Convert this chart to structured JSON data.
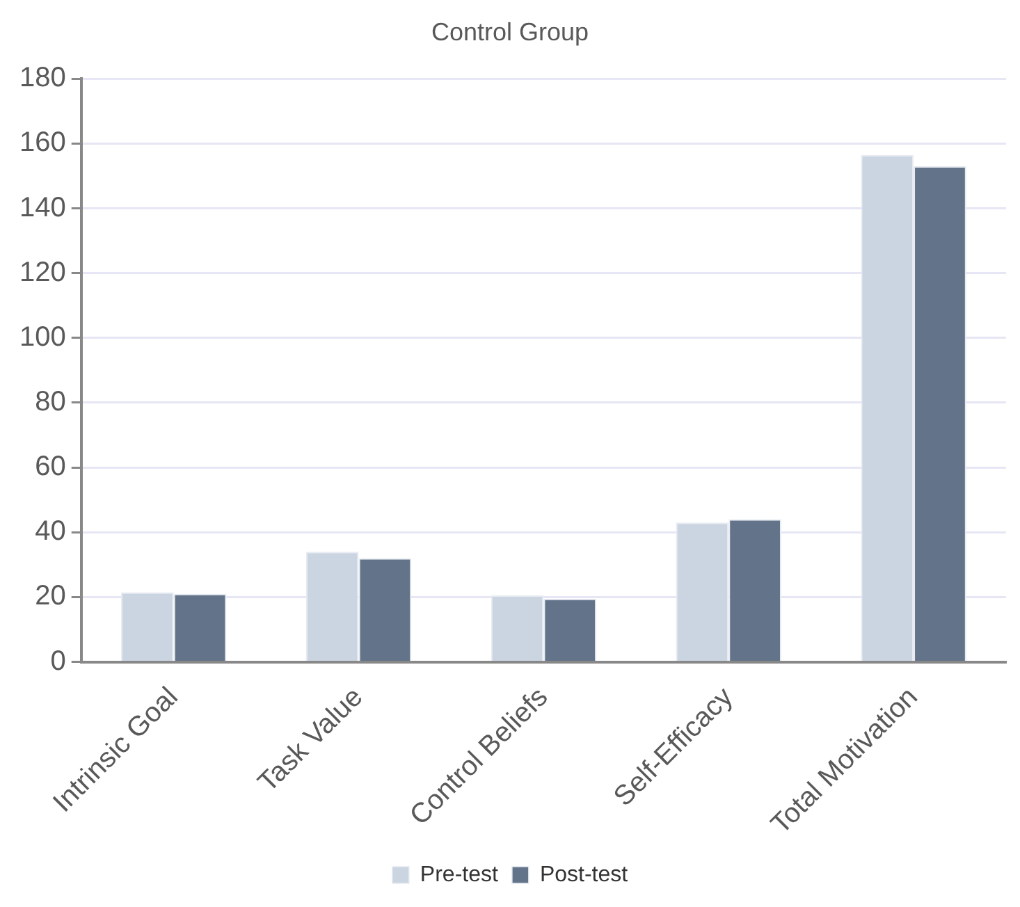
{
  "chart_data": {
    "type": "bar",
    "title": "Control Group",
    "categories": [
      "Intrinsic Goal",
      "Task Value",
      "Control Beliefs",
      "Self-Efficacy",
      "Total Motivation"
    ],
    "series": [
      {
        "name": "Pre-test",
        "color": "#cbd5e1",
        "values": [
          21.5,
          34,
          20.5,
          43,
          156.5
        ]
      },
      {
        "name": "Post-test",
        "color": "#637389",
        "values": [
          21,
          32,
          19.5,
          44,
          153
        ]
      }
    ],
    "ylim": [
      0,
      180
    ],
    "yticks": [
      0,
      20,
      40,
      60,
      80,
      100,
      120,
      140,
      160,
      180
    ],
    "grid": "y",
    "legend": "bottom"
  }
}
